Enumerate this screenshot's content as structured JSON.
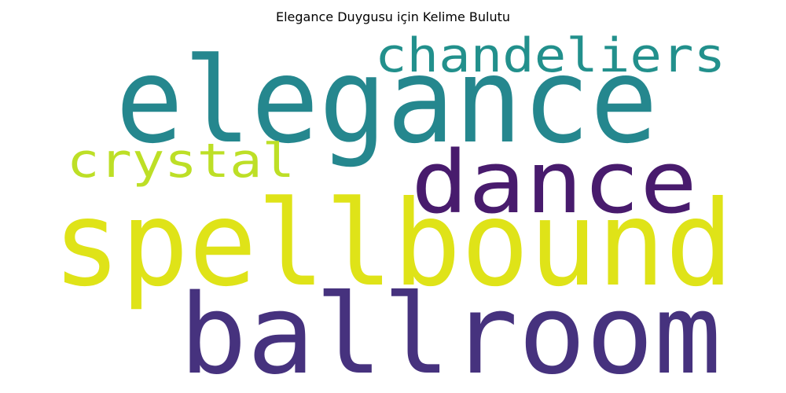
{
  "chart_data": {
    "type": "wordcloud",
    "title": "Elegance Duygusu için Kelime Bulutu",
    "words": [
      {
        "text": "spellbound",
        "color": "#dfe318"
      },
      {
        "text": "elegance",
        "color": "#25878e"
      },
      {
        "text": "ballroom",
        "color": "#46327e"
      },
      {
        "text": "dance",
        "color": "#481b6d"
      },
      {
        "text": "chandeliers",
        "color": "#22908c"
      },
      {
        "text": "crystal",
        "color": "#bddf26"
      }
    ]
  }
}
